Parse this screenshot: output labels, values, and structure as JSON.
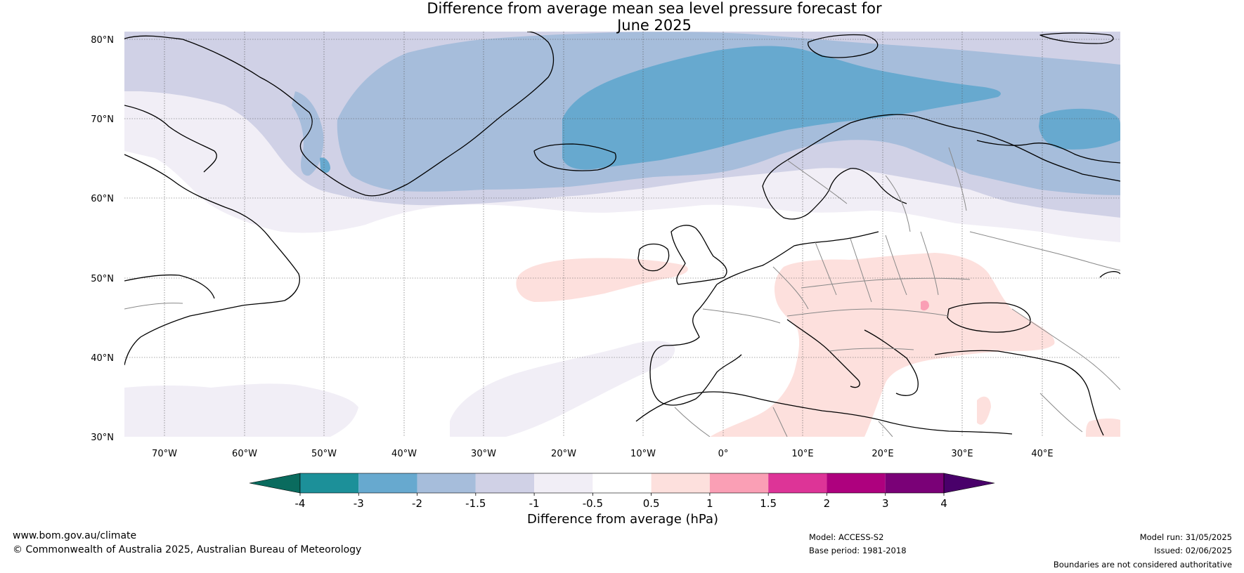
{
  "title": {
    "line1": "Difference from average mean sea level pressure forecast for",
    "line2": "June 2025"
  },
  "map": {
    "lat_labels": [
      "80°N",
      "70°N",
      "60°N",
      "50°N",
      "40°N",
      "30°N"
    ],
    "lon_labels": [
      "70°W",
      "60°W",
      "50°W",
      "40°W",
      "30°W",
      "20°W",
      "10°W",
      "0°",
      "10°E",
      "20°E",
      "30°E",
      "40°E"
    ]
  },
  "colorbar": {
    "title": "Difference from average (hPa)",
    "tick_labels": [
      "-4",
      "-3",
      "-2",
      "-1.5",
      "-1",
      "-0.5",
      "0.5",
      "1",
      "1.5",
      "2",
      "3",
      "4"
    ],
    "colors": {
      "below": "#0a6b5e",
      "bins": [
        "#1c9099",
        "#67a9cf",
        "#a6bddb",
        "#d0d1e6",
        "#f1eef6",
        "#ffffff",
        "#fde0dd",
        "#fa9fb5",
        "#dd3497",
        "#ae017e",
        "#7a0177"
      ],
      "above": "#49006a"
    }
  },
  "footer": {
    "website": "www.bom.gov.au/climate",
    "copyright": "© Commonwealth of Australia 2025, Australian Bureau of Meteorology",
    "model": "Model: ACCESS-S2",
    "base_period": "Base period: 1981-2018",
    "model_run": "Model run: 31/05/2025",
    "issued": "Issued: 02/06/2025",
    "disclaimer": "Boundaries are not considered authoritative"
  }
}
